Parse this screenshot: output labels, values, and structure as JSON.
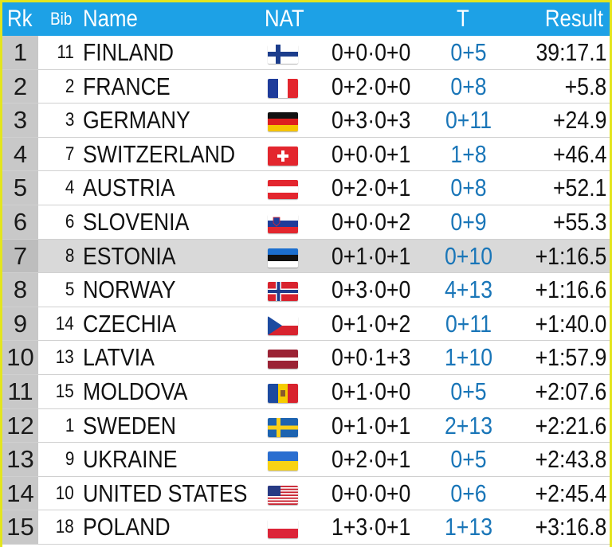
{
  "header": {
    "rk": "Rk",
    "bib": "Bib",
    "name": "Name",
    "nat": "NAT",
    "t": "T",
    "result": "Result"
  },
  "highlight_color": "#d9d9d9",
  "header_color": "#1da1e6",
  "rows": [
    {
      "rk": "1",
      "bib": "11",
      "name": "FINLAND",
      "flag": "finland-flag-icon",
      "shoot": "0+0·0+0",
      "t": "0+5",
      "result": "39:17.1"
    },
    {
      "rk": "2",
      "bib": "2",
      "name": "FRANCE",
      "flag": "france-flag-icon",
      "shoot": "0+2·0+0",
      "t": "0+8",
      "result": "+5.8"
    },
    {
      "rk": "3",
      "bib": "3",
      "name": "GERMANY",
      "flag": "germany-flag-icon",
      "shoot": "0+3·0+3",
      "t": "0+11",
      "result": "+24.9"
    },
    {
      "rk": "4",
      "bib": "7",
      "name": "SWITZERLAND",
      "flag": "switzerland-flag-icon",
      "shoot": "0+0·0+1",
      "t": "1+8",
      "result": "+46.4"
    },
    {
      "rk": "5",
      "bib": "4",
      "name": "AUSTRIA",
      "flag": "austria-flag-icon",
      "shoot": "0+2·0+1",
      "t": "0+8",
      "result": "+52.1"
    },
    {
      "rk": "6",
      "bib": "6",
      "name": "SLOVENIA",
      "flag": "slovenia-flag-icon",
      "shoot": "0+0·0+2",
      "t": "0+9",
      "result": "+55.3"
    },
    {
      "rk": "7",
      "bib": "8",
      "name": "ESTONIA",
      "flag": "estonia-flag-icon",
      "shoot": "0+1·0+1",
      "t": "0+10",
      "result": "+1:16.5"
    },
    {
      "rk": "8",
      "bib": "5",
      "name": "NORWAY",
      "flag": "norway-flag-icon",
      "shoot": "0+3·0+0",
      "t": "4+13",
      "result": "+1:16.6"
    },
    {
      "rk": "9",
      "bib": "14",
      "name": "CZECHIA",
      "flag": "czechia-flag-icon",
      "shoot": "0+1·0+2",
      "t": "0+11",
      "result": "+1:40.0"
    },
    {
      "rk": "10",
      "bib": "13",
      "name": "LATVIA",
      "flag": "latvia-flag-icon",
      "shoot": "0+0·1+3",
      "t": "1+10",
      "result": "+1:57.9"
    },
    {
      "rk": "11",
      "bib": "15",
      "name": "MOLDOVA",
      "flag": "moldova-flag-icon",
      "shoot": "0+1·0+0",
      "t": "0+5",
      "result": "+2:07.6"
    },
    {
      "rk": "12",
      "bib": "1",
      "name": "SWEDEN",
      "flag": "sweden-flag-icon",
      "shoot": "0+1·0+1",
      "t": "2+13",
      "result": "+2:21.6"
    },
    {
      "rk": "13",
      "bib": "9",
      "name": "UKRAINE",
      "flag": "ukraine-flag-icon",
      "shoot": "0+2·0+1",
      "t": "0+5",
      "result": "+2:43.8"
    },
    {
      "rk": "14",
      "bib": "10",
      "name": "UNITED STATES",
      "flag": "usa-flag-icon",
      "shoot": "0+0·0+0",
      "t": "0+6",
      "result": "+2:45.4"
    },
    {
      "rk": "15",
      "bib": "18",
      "name": "POLAND",
      "flag": "poland-flag-icon",
      "shoot": "1+3·0+1",
      "t": "1+13",
      "result": "+3:16.8"
    }
  ]
}
